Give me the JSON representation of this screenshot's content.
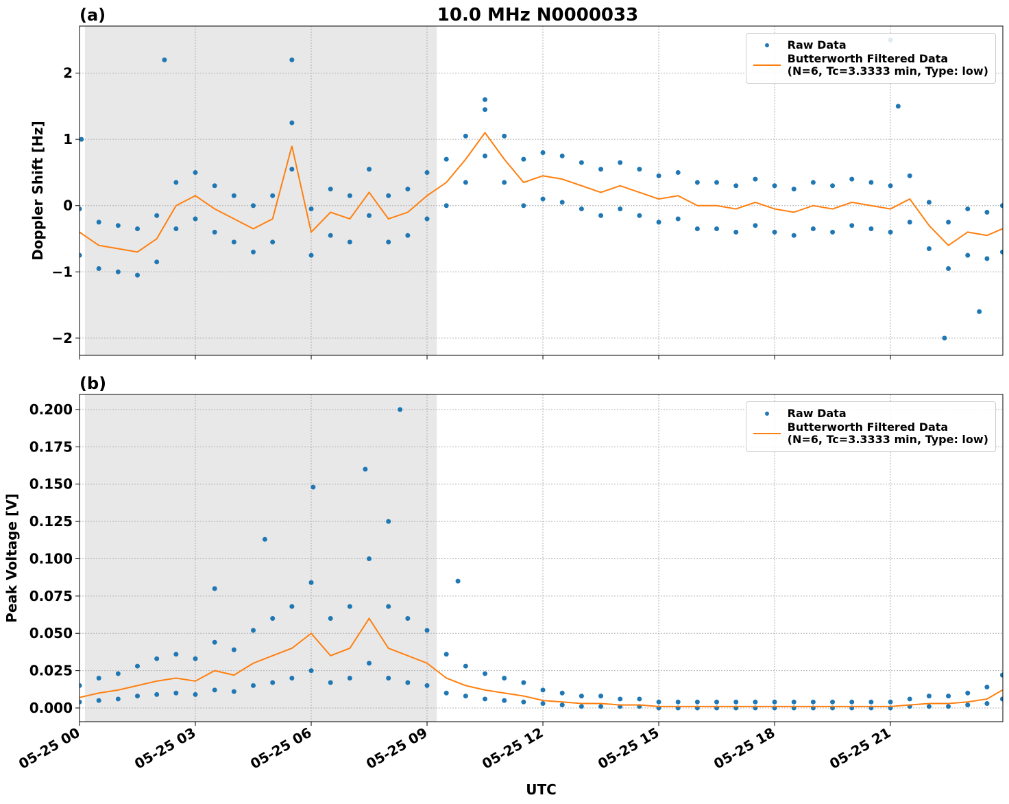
{
  "chart_data": [
    {
      "type": "scatter_line",
      "title": "10.0 MHz N0000033",
      "panel_label": "(a)",
      "ylabel": "Doppler Shift [Hz]",
      "xlim": [
        0,
        23.91
      ],
      "ylim": [
        -2.26,
        2.71
      ],
      "xticks": [
        0,
        3,
        6,
        9,
        12,
        15,
        18,
        21
      ],
      "yticks": [
        {
          "value": -2,
          "label": "−2"
        },
        {
          "value": -1,
          "label": "−1"
        },
        0,
        1,
        2
      ],
      "grid": true,
      "legend": "upper right",
      "shaded_region": [
        0.14,
        9.25
      ],
      "series": [
        {
          "name": "Raw Data",
          "color": "#1f77b4",
          "kind": "points",
          "x": [
            0,
            0.5,
            1,
            1.5,
            2,
            2.5,
            3,
            3.5,
            4,
            4.5,
            5,
            5.5,
            6,
            6.5,
            7,
            7.5,
            8,
            8.5,
            9,
            9.5,
            10,
            10.5,
            11,
            11.5,
            12,
            12.5,
            13,
            13.5,
            14,
            14.5,
            15,
            15.5,
            16,
            16.5,
            17,
            17.5,
            18,
            18.5,
            19,
            19.5,
            20,
            20.5,
            21,
            21.5,
            22,
            22.5,
            23,
            23.5,
            23.9,
            0,
            0.5,
            1,
            1.5,
            2,
            2.5,
            3,
            3.5,
            4,
            4.5,
            5,
            5.5,
            6,
            6.5,
            7,
            7.5,
            8,
            8.5,
            9,
            9.5,
            10,
            10.5,
            11,
            11.5,
            12,
            12.5,
            13,
            13.5,
            14,
            14.5,
            15,
            15.5,
            16,
            16.5,
            17,
            17.5,
            18,
            18.5,
            19,
            19.5,
            20,
            20.5,
            21,
            21.5,
            22,
            22.5,
            23,
            23.5,
            23.9,
            2.2,
            5.5,
            10.5,
            21,
            21.2,
            22.4,
            0.05,
            23.3
          ],
          "values": [
            -0.05,
            -0.25,
            -0.3,
            -0.35,
            -0.15,
            0.35,
            0.5,
            0.3,
            0.15,
            0,
            0.15,
            1.25,
            -0.05,
            0.25,
            0.15,
            0.55,
            0.15,
            0.25,
            0.5,
            0.7,
            1.05,
            1.45,
            1.05,
            0.7,
            0.8,
            0.75,
            0.65,
            0.55,
            0.65,
            0.55,
            0.45,
            0.5,
            0.35,
            0.35,
            0.3,
            0.4,
            0.3,
            0.25,
            0.35,
            0.3,
            0.4,
            0.35,
            0.3,
            0.45,
            0.05,
            -0.25,
            -0.05,
            -0.1,
            0,
            -0.75,
            -0.95,
            -1,
            -1.05,
            -0.85,
            -0.35,
            -0.2,
            -0.4,
            -0.55,
            -0.7,
            -0.55,
            0.55,
            -0.75,
            -0.45,
            -0.55,
            -0.15,
            -0.55,
            -0.45,
            -0.2,
            0,
            0.35,
            0.75,
            0.35,
            0,
            0.1,
            0.05,
            -0.05,
            -0.15,
            -0.05,
            -0.15,
            -0.25,
            -0.2,
            -0.35,
            -0.35,
            -0.4,
            -0.3,
            -0.4,
            -0.45,
            -0.35,
            -0.4,
            -0.3,
            -0.35,
            -0.4,
            -0.25,
            -0.65,
            -0.95,
            -0.75,
            -0.8,
            -0.7,
            2.2,
            2.2,
            1.6,
            2.5,
            1.5,
            -2.0,
            1.0,
            -1.6
          ]
        },
        {
          "name": "Butterworth Filtered Data\n(N=6, Tc=3.3333 min, Type: low)",
          "color": "#ff7f0e",
          "kind": "line",
          "x": [
            0,
            0.5,
            1,
            1.5,
            2,
            2.5,
            3,
            3.5,
            4,
            4.5,
            5,
            5.5,
            6,
            6.5,
            7,
            7.5,
            8,
            8.5,
            9,
            9.5,
            10,
            10.5,
            11,
            11.5,
            12,
            12.5,
            13,
            13.5,
            14,
            14.5,
            15,
            15.5,
            16,
            16.5,
            17,
            17.5,
            18,
            18.5,
            19,
            19.5,
            20,
            20.5,
            21,
            21.5,
            22,
            22.5,
            23,
            23.5,
            23.9
          ],
          "values": [
            -0.4,
            -0.6,
            -0.65,
            -0.7,
            -0.5,
            0.0,
            0.15,
            -0.05,
            -0.2,
            -0.35,
            -0.2,
            0.9,
            -0.4,
            -0.1,
            -0.2,
            0.2,
            -0.2,
            -0.1,
            0.15,
            0.35,
            0.7,
            1.1,
            0.7,
            0.35,
            0.45,
            0.4,
            0.3,
            0.2,
            0.3,
            0.2,
            0.1,
            0.15,
            0.0,
            0.0,
            -0.05,
            0.05,
            -0.05,
            -0.1,
            0.0,
            -0.05,
            0.05,
            0.0,
            -0.05,
            0.1,
            -0.3,
            -0.6,
            -0.4,
            -0.45,
            -0.35
          ]
        }
      ]
    },
    {
      "type": "scatter_line",
      "panel_label": "(b)",
      "ylabel": "Peak Voltage [V]",
      "xlabel": "UTC",
      "xlim": [
        0,
        23.91
      ],
      "ylim": [
        -0.0092,
        0.2101
      ],
      "xticks": [
        {
          "value": 0,
          "label": "05-25 00"
        },
        {
          "value": 3,
          "label": "05-25 03"
        },
        {
          "value": 6,
          "label": "05-25 06"
        },
        {
          "value": 9,
          "label": "05-25 09"
        },
        {
          "value": 12,
          "label": "05-25 12"
        },
        {
          "value": 15,
          "label": "05-25 15"
        },
        {
          "value": 18,
          "label": "05-25 18"
        },
        {
          "value": 21,
          "label": "05-25 21"
        }
      ],
      "yticks": [
        {
          "value": 0,
          "label": "0.000"
        },
        {
          "value": 0.025,
          "label": "0.025"
        },
        {
          "value": 0.05,
          "label": "0.050"
        },
        {
          "value": 0.075,
          "label": "0.075"
        },
        {
          "value": 0.1,
          "label": "0.100"
        },
        {
          "value": 0.125,
          "label": "0.125"
        },
        {
          "value": 0.15,
          "label": "0.150"
        },
        {
          "value": 0.175,
          "label": "0.175"
        },
        {
          "value": 0.2,
          "label": "0.200"
        }
      ],
      "grid": true,
      "legend": "upper right",
      "shaded_region": [
        0.14,
        9.25
      ],
      "series": [
        {
          "name": "Raw Data",
          "color": "#1f77b4",
          "kind": "points",
          "x": [
            0,
            0.5,
            1,
            1.5,
            2,
            2.5,
            3,
            3.5,
            4,
            4.5,
            5,
            5.5,
            6,
            6.5,
            7,
            7.5,
            8,
            8.5,
            9,
            9.5,
            10,
            10.5,
            11,
            11.5,
            12,
            12.5,
            13,
            13.5,
            14,
            14.5,
            15,
            15.5,
            16,
            16.5,
            17,
            17.5,
            18,
            18.5,
            19,
            19.5,
            20,
            20.5,
            21,
            21.5,
            22,
            22.5,
            23,
            23.5,
            23.9,
            0,
            0.5,
            1,
            1.5,
            2,
            2.5,
            3,
            3.5,
            4,
            4.5,
            5,
            5.5,
            6,
            6.5,
            7,
            7.5,
            8,
            8.5,
            9,
            9.5,
            10,
            10.5,
            11,
            11.5,
            12,
            12.5,
            13,
            13.5,
            14,
            14.5,
            15,
            15.5,
            16,
            16.5,
            17,
            17.5,
            18,
            18.5,
            19,
            19.5,
            20,
            20.5,
            21,
            21.5,
            22,
            22.5,
            23,
            23.5,
            23.9,
            7.4,
            8.3,
            6.05,
            4.8,
            3.5,
            9.8,
            8.0
          ],
          "values": [
            0.015,
            0.02,
            0.023,
            0.028,
            0.033,
            0.036,
            0.033,
            0.044,
            0.039,
            0.052,
            0.06,
            0.068,
            0.084,
            0.06,
            0.068,
            0.1,
            0.068,
            0.06,
            0.052,
            0.036,
            0.028,
            0.023,
            0.02,
            0.017,
            0.012,
            0.01,
            0.008,
            0.008,
            0.006,
            0.006,
            0.004,
            0.004,
            0.004,
            0.004,
            0.004,
            0.004,
            0.004,
            0.004,
            0.004,
            0.004,
            0.004,
            0.004,
            0.004,
            0.006,
            0.008,
            0.008,
            0.01,
            0.014,
            0.022,
            0.004,
            0.005,
            0.006,
            0.008,
            0.009,
            0.01,
            0.009,
            0.012,
            0.011,
            0.015,
            0.017,
            0.02,
            0.025,
            0.017,
            0.02,
            0.03,
            0.02,
            0.017,
            0.015,
            0.01,
            0.008,
            0.006,
            0.005,
            0.004,
            0.003,
            0.002,
            0.001,
            0.001,
            0.001,
            0.001,
            0,
            0,
            0,
            0,
            0,
            0,
            0,
            0,
            0,
            0,
            0,
            0,
            0,
            0.001,
            0.001,
            0.001,
            0.002,
            0.003,
            0.006,
            0.16,
            0.2,
            0.148,
            0.113,
            0.08,
            0.085,
            0.125
          ]
        },
        {
          "name": "Butterworth Filtered Data\n(N=6, Tc=3.3333 min, Type: low)",
          "color": "#ff7f0e",
          "kind": "line",
          "x": [
            0,
            0.5,
            1,
            1.5,
            2,
            2.5,
            3,
            3.5,
            4,
            4.5,
            5,
            5.5,
            6,
            6.5,
            7,
            7.5,
            8,
            8.5,
            9,
            9.5,
            10,
            10.5,
            11,
            11.5,
            12,
            12.5,
            13,
            13.5,
            14,
            14.5,
            15,
            15.5,
            16,
            16.5,
            17,
            17.5,
            18,
            18.5,
            19,
            19.5,
            20,
            20.5,
            21,
            21.5,
            22,
            22.5,
            23,
            23.5,
            23.9
          ],
          "values": [
            0.007,
            0.01,
            0.012,
            0.015,
            0.018,
            0.02,
            0.018,
            0.025,
            0.022,
            0.03,
            0.035,
            0.04,
            0.05,
            0.035,
            0.04,
            0.06,
            0.04,
            0.035,
            0.03,
            0.02,
            0.015,
            0.012,
            0.01,
            0.008,
            0.005,
            0.004,
            0.003,
            0.003,
            0.002,
            0.002,
            0.001,
            0.001,
            0.001,
            0.001,
            0.001,
            0.001,
            0.001,
            0.001,
            0.001,
            0.001,
            0.001,
            0.001,
            0.001,
            0.002,
            0.003,
            0.003,
            0.004,
            0.006,
            0.012
          ]
        }
      ]
    }
  ]
}
